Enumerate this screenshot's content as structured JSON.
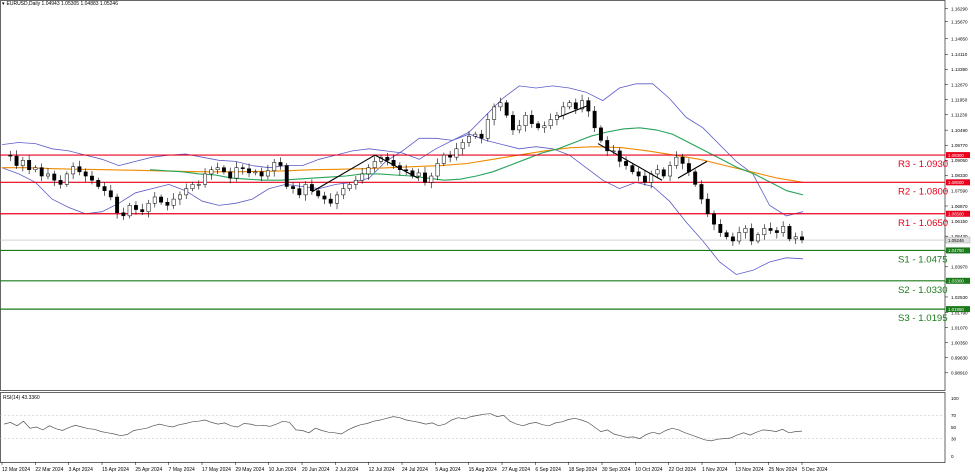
{
  "header": {
    "symbol": "EURUSD,Daily",
    "ohlc": "1.04943 1.05305 1.04883 1.05246"
  },
  "rsi_label": "RSI(14) 43.3360",
  "colors": {
    "resistance": "#e8001c",
    "support": "#1a7a1a",
    "bollinger": "#5c5cc8",
    "ma_green": "#27a35a",
    "ma_orange": "#f08a00",
    "candle": "#000000",
    "price_tag": "#d90000",
    "last_price_bg": "#e0e0e0"
  },
  "chart_data": [
    {
      "type": "candlestick",
      "title": "EURUSD,Daily",
      "ylim": [
        0.9809,
        1.167
      ],
      "y_ticks": [
        "1.16290",
        "1.15670",
        "1.14850",
        "1.14110",
        "1.13390",
        "1.12670",
        "1.11950",
        "1.11230",
        "1.10490",
        "1.09770",
        "1.09050",
        "1.08330",
        "1.07590",
        "1.06870",
        "1.06150",
        "1.05430",
        "1.04710",
        "1.03970",
        "1.03250",
        "1.02530",
        "1.01790",
        "1.01070",
        "1.00350",
        "0.99630",
        "0.98910"
      ],
      "x_labels": [
        "12 Mar 2024",
        "22 Mar 2024",
        "3 Apr 2024",
        "15 Apr 2024",
        "25 Apr 2024",
        "7 May 2024",
        "17 May 2024",
        "29 May 2024",
        "10 Jun 2024",
        "20 Jun 2024",
        "2 Jul 2024",
        "12 Jul 2024",
        "24 Jul 2024",
        "5 Aug 2024",
        "15 Aug 2024",
        "27 Aug 2024",
        "6 Sep 2024",
        "18 Sep 2024",
        "30 Sep 2024",
        "10 Oct 2024",
        "22 Oct 2024",
        "1 Nov 2024",
        "13 Nov 2024",
        "25 Nov 2024",
        "5 Dec 2024"
      ],
      "last_price": {
        "value": 1.05246,
        "label": "1.05246"
      },
      "levels": [
        {
          "name": "R3 - 1.0930",
          "value": 1.093,
          "tag": "1.09300",
          "kind": "resistance"
        },
        {
          "name": "R2 - 1.0800",
          "value": 1.08,
          "tag": "1.08000",
          "kind": "resistance"
        },
        {
          "name": "R1 - 1.0650",
          "value": 1.065,
          "tag": "1.06500",
          "kind": "resistance"
        },
        {
          "name": "S1 - 1.0475",
          "value": 1.0475,
          "tag": "1.04750",
          "kind": "support"
        },
        {
          "name": "S2 - 1.0330",
          "value": 1.033,
          "tag": "1.03300",
          "kind": "support"
        },
        {
          "name": "S3 - 1.0195",
          "value": 1.0195,
          "tag": "1.01950",
          "kind": "support"
        }
      ],
      "price_path": [
        1.093,
        1.0925,
        1.088,
        1.0905,
        1.086,
        1.087,
        1.083,
        1.084,
        1.081,
        1.079,
        1.084,
        1.0875,
        1.085,
        1.083,
        1.081,
        1.078,
        1.076,
        1.073,
        1.0655,
        1.064,
        1.069,
        1.067,
        1.066,
        1.07,
        1.073,
        1.0705,
        1.069,
        1.072,
        1.074,
        1.077,
        1.079,
        1.079,
        1.084,
        1.086,
        1.087,
        1.085,
        1.082,
        1.087,
        1.0865,
        1.0845,
        1.085,
        1.083,
        1.0855,
        1.0895,
        1.088,
        1.078,
        1.077,
        1.074,
        1.079,
        1.076,
        1.0735,
        1.072,
        1.07,
        1.074,
        1.077,
        1.079,
        1.081,
        1.084,
        1.087,
        1.09,
        1.092,
        1.0905,
        1.088,
        1.086,
        1.0855,
        1.083,
        1.0845,
        1.08,
        1.083,
        1.089,
        1.093,
        1.092,
        1.096,
        1.099,
        1.102,
        1.103,
        1.101,
        1.11,
        1.116,
        1.118,
        1.112,
        1.105,
        1.107,
        1.112,
        1.108,
        1.106,
        1.107,
        1.11,
        1.112,
        1.116,
        1.118,
        1.115,
        1.119,
        1.114,
        1.106,
        1.1,
        1.095,
        1.095,
        1.09,
        1.088,
        1.085,
        1.083,
        1.08,
        1.084,
        1.086,
        1.083,
        1.088,
        1.092,
        1.089,
        1.085,
        1.079,
        1.072,
        1.065,
        1.06,
        1.056,
        1.054,
        1.052,
        1.056,
        1.058,
        1.052,
        1.055,
        1.058,
        1.057,
        1.056,
        1.059,
        1.053,
        1.054,
        1.0525
      ],
      "bb_upper": [
        1.098,
        1.099,
        1.0985,
        1.096,
        1.095,
        1.093,
        1.091,
        1.088,
        1.09,
        1.092,
        1.093,
        1.0935,
        1.092,
        1.0905,
        1.09,
        1.088,
        1.087,
        1.088,
        1.088,
        1.091,
        1.093,
        1.095,
        1.096,
        1.095,
        1.094,
        1.091,
        1.096,
        1.1,
        1.104,
        1.112,
        1.12,
        1.126,
        1.125,
        1.126,
        1.125,
        1.123,
        1.119,
        1.125,
        1.127,
        1.127,
        1.12,
        1.111,
        1.106,
        1.098,
        1.09,
        1.084,
        1.069,
        1.064,
        1.066
      ],
      "bb_lower": [
        1.087,
        1.084,
        1.08,
        1.072,
        1.068,
        1.065,
        1.066,
        1.07,
        1.075,
        1.077,
        1.079,
        1.076,
        1.071,
        1.069,
        1.07,
        1.072,
        1.077,
        1.079,
        1.078,
        1.077,
        1.079,
        1.08,
        1.082,
        1.09,
        1.095,
        1.101,
        1.101,
        1.1,
        1.103,
        1.1,
        1.098,
        1.096,
        1.097,
        1.096,
        1.093,
        1.087,
        1.081,
        1.077,
        1.08,
        1.078,
        1.071,
        1.061,
        1.052,
        1.042,
        1.036,
        1.038,
        1.042,
        1.044,
        1.0435
      ],
      "ma_green": [
        1.086,
        1.0855,
        1.085,
        1.084,
        1.0835,
        1.082,
        1.0815,
        1.081,
        1.081,
        1.0815,
        1.082,
        1.0825,
        1.083,
        1.084,
        1.084,
        1.0835,
        1.083,
        1.082,
        1.081,
        1.0815,
        1.083,
        1.085,
        1.088,
        1.091,
        1.094,
        1.096,
        1.099,
        1.102,
        1.104,
        1.1055,
        1.106,
        1.105,
        1.103,
        1.099,
        1.095,
        1.091,
        1.087,
        1.084,
        1.08,
        1.076,
        1.074
      ],
      "ma_orange": [
        1.087,
        1.087,
        1.0865,
        1.0862,
        1.086,
        1.0858,
        1.0855,
        1.0852,
        1.085,
        1.085,
        1.0852,
        1.0855,
        1.086,
        1.0862,
        1.0865,
        1.087,
        1.0875,
        1.088,
        1.089,
        1.091,
        1.093,
        1.095,
        1.0965,
        1.097,
        1.0965,
        1.095,
        1.093,
        1.091,
        1.088,
        1.085,
        1.082,
        1.08
      ],
      "trend_lines": [
        {
          "from": [
            1.0755,
            1.076
          ],
          "to": [
            1.093,
            1.093
          ]
        },
        {
          "from": [
            1.093,
            1.093
          ],
          "to": [
            1.086,
            1.082
          ]
        },
        {
          "from": [
            1.111,
            1.111
          ],
          "to": [
            1.115,
            1.117
          ]
        },
        {
          "from": [
            1.0985,
            1.0985
          ],
          "to": [
            1.084,
            1.081
          ]
        },
        {
          "from": [
            1.082,
            1.082
          ],
          "to": [
            1.089,
            1.09
          ]
        }
      ]
    },
    {
      "type": "line",
      "title": "RSI(14) 43.3360",
      "ylim": [
        0,
        100
      ],
      "y_ticks": [
        "100",
        "70",
        "50",
        "30",
        "0"
      ],
      "values": [
        55,
        58,
        52,
        60,
        48,
        50,
        45,
        52,
        47,
        44,
        49,
        53,
        50,
        47,
        46,
        42,
        40,
        38,
        35,
        37,
        44,
        46,
        48,
        52,
        55,
        52,
        50,
        54,
        56,
        59,
        60,
        62,
        58,
        55,
        57,
        52,
        50,
        56,
        55,
        52,
        53,
        51,
        55,
        60,
        58,
        45,
        44,
        40,
        48,
        44,
        41,
        40,
        38,
        45,
        50,
        54,
        56,
        60,
        62,
        65,
        68,
        66,
        62,
        60,
        58,
        55,
        57,
        52,
        55,
        62,
        66,
        64,
        68,
        70,
        72,
        73,
        68,
        70,
        60,
        55,
        52,
        56,
        58,
        54,
        52,
        57,
        59,
        63,
        65,
        62,
        58,
        50,
        42,
        45,
        38,
        35,
        32,
        33,
        30,
        37,
        41,
        38,
        44,
        48,
        45,
        40,
        36,
        32,
        28,
        26,
        29,
        30,
        31,
        36,
        40,
        36,
        41,
        45,
        44,
        42,
        46,
        40,
        42,
        43
      ]
    }
  ]
}
